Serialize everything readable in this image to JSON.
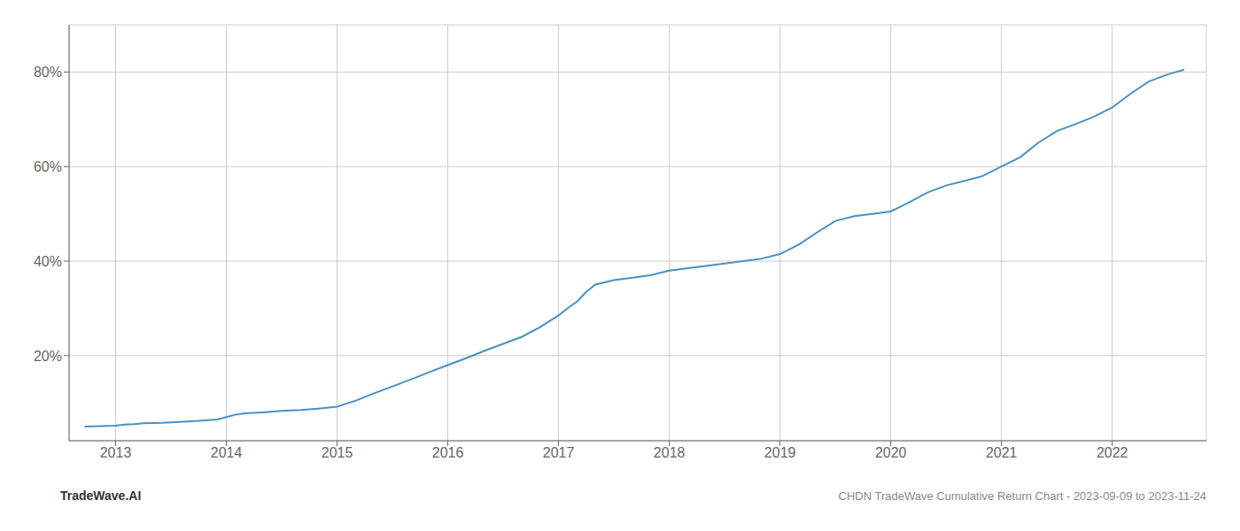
{
  "chart_data": {
    "type": "line",
    "title": "CHDN TradeWave Cumulative Return Chart - 2023-09-09 to 2023-11-24",
    "annotations": [
      "TradeWave.AI"
    ],
    "color": "#4a90c4",
    "grid": true,
    "x": [
      2012.72,
      2013.0,
      2013.08,
      2013.17,
      2013.25,
      2013.42,
      2013.58,
      2013.75,
      2013.92,
      2014.0,
      2014.08,
      2014.17,
      2014.33,
      2014.5,
      2014.67,
      2014.83,
      2015.0,
      2015.17,
      2015.33,
      2015.5,
      2015.67,
      2015.83,
      2016.0,
      2016.17,
      2016.33,
      2016.5,
      2016.67,
      2016.83,
      2017.0,
      2017.08,
      2017.17,
      2017.25,
      2017.33,
      2017.5,
      2017.67,
      2017.83,
      2018.0,
      2018.17,
      2018.33,
      2018.5,
      2018.67,
      2018.83,
      2019.0,
      2019.17,
      2019.33,
      2019.5,
      2019.67,
      2019.83,
      2020.0,
      2020.17,
      2020.33,
      2020.5,
      2020.67,
      2020.83,
      2021.0,
      2021.17,
      2021.33,
      2021.5,
      2021.67,
      2021.83,
      2022.0,
      2022.17,
      2022.33,
      2022.5,
      2022.65
    ],
    "values": [
      5.0,
      5.2,
      5.4,
      5.5,
      5.7,
      5.8,
      6.0,
      6.2,
      6.5,
      7.0,
      7.5,
      7.8,
      8.0,
      8.3,
      8.5,
      8.8,
      9.2,
      10.5,
      12.0,
      13.5,
      15.0,
      16.5,
      18.0,
      19.5,
      21.0,
      22.5,
      24.0,
      26.0,
      28.5,
      30.0,
      31.5,
      33.5,
      35.0,
      36.0,
      36.5,
      37.0,
      38.0,
      38.5,
      39.0,
      39.5,
      40.0,
      40.5,
      41.5,
      43.5,
      46.0,
      48.5,
      49.5,
      50.0,
      50.5,
      52.5,
      54.5,
      56.0,
      57.0,
      58.0,
      60.0,
      62.0,
      65.0,
      67.5,
      69.0,
      70.5,
      72.5,
      75.5,
      78.0,
      79.5,
      80.5
    ],
    "xlim": [
      2012.58,
      2022.85
    ],
    "xticks": [
      2013,
      2014,
      2015,
      2016,
      2017,
      2018,
      2019,
      2020,
      2021,
      2022
    ],
    "ylim": [
      2,
      90
    ],
    "yticks": [
      {
        "value": 20,
        "label": "20%"
      },
      {
        "value": 40,
        "label": "40%"
      },
      {
        "value": 60,
        "label": "60%"
      },
      {
        "value": 80,
        "label": "80%"
      }
    ]
  }
}
